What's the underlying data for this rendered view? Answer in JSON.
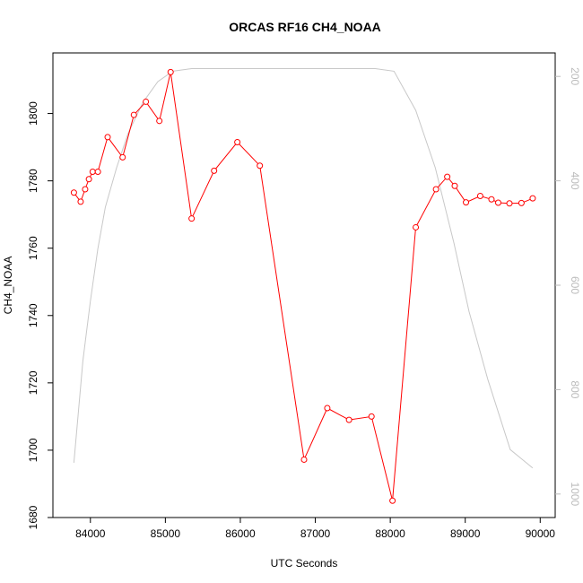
{
  "chart_data": {
    "type": "line",
    "title": "ORCAS RF16 CH4_NOAA",
    "xlabel": "UTC Seconds",
    "ylabel": "CH4_NOAA",
    "xlim": [
      83500,
      90200
    ],
    "ylim": [
      1680,
      1818
    ],
    "x_ticks": [
      84000,
      85000,
      86000,
      87000,
      88000,
      89000,
      90000
    ],
    "y_ticks": [
      1680,
      1700,
      1720,
      1740,
      1760,
      1780,
      1800
    ],
    "y2lim": [
      1045,
      155
    ],
    "y2_ticks": [
      200,
      400,
      600,
      800,
      1000
    ],
    "grid": false,
    "colors": {
      "series": "#ff0000",
      "secondary": "#c8c8c8",
      "axis": "#000000",
      "axis2": "#bbbbbb"
    },
    "series": [
      {
        "axis": "left",
        "x": [
          83780,
          83870,
          83930,
          83980,
          84030,
          84100,
          84230,
          84430,
          84580,
          84740,
          84920,
          85070,
          85350,
          85650,
          85960,
          86260,
          86850,
          87160,
          87450,
          87750,
          88030,
          88340,
          88610,
          88760,
          88860,
          89010,
          89200,
          89350,
          89440,
          89590,
          89750,
          89900
        ],
        "y": [
          1776.5,
          1773.8,
          1777.5,
          1780.5,
          1782.7,
          1782.7,
          1793,
          1787,
          1799.6,
          1803.5,
          1797.8,
          1812.3,
          1768.8,
          1783,
          1791.5,
          1784.5,
          1697.2,
          1712.5,
          1709,
          1710,
          1685,
          1766.2,
          1777.5,
          1781.2,
          1778.5,
          1773.6,
          1775.5,
          1774.5,
          1773.5,
          1773.3,
          1773.4,
          1774.8
        ]
      },
      {
        "axis": "right",
        "x": [
          83780,
          83900,
          84000,
          84100,
          84200,
          84350,
          84500,
          84700,
          84900,
          85100,
          85350,
          85700,
          86000,
          86500,
          87000,
          87500,
          87800,
          88050,
          88340,
          88600,
          88850,
          89050,
          89300,
          89600,
          89900
        ],
        "y": [
          940,
          745,
          630,
          530,
          450,
          375,
          310,
          250,
          210,
          190,
          185,
          185,
          185,
          185,
          185,
          185,
          185,
          190,
          265,
          375,
          520,
          650,
          780,
          915,
          950
        ]
      }
    ]
  }
}
